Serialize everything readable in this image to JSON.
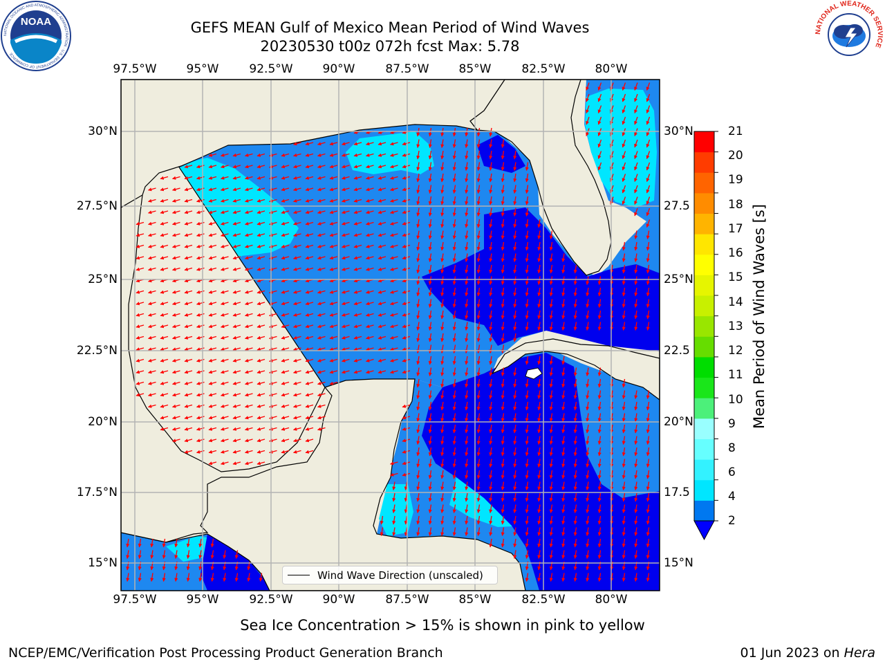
{
  "title": {
    "line1": "GEFS MEAN Gulf of Mexico Mean Period of Wind Waves",
    "line2": "20230530 t00z 072h fcst   Max: 5.78"
  },
  "logos": {
    "noaa_text": "NOAA",
    "noaa_ring": "NATIONAL OCEANIC AND ATMOSPHERIC ADMINISTRATION · U.S. DEPARTMENT OF COMMERCE",
    "nws_ring": "NATIONAL WEATHER SERVICE"
  },
  "map": {
    "lon_labels": [
      "97.5°W",
      "95°W",
      "92.5°W",
      "90°W",
      "87.5°W",
      "85°W",
      "82.5°W",
      "80°W"
    ],
    "lat_labels_left": [
      "30°N",
      "27.5°N",
      "25°N",
      "22.5°N",
      "20°N",
      "17.5°N",
      "15°N"
    ],
    "lat_labels_right": [
      "30°N",
      "27.5",
      "25°N",
      "22.5",
      "20°N",
      "17.5",
      "15°N"
    ],
    "legend_text": "Wind Wave Direction (unscaled)",
    "colors": {
      "land": "#efedde",
      "ocean_fill": "#1e88f0",
      "arrow": "#ff0000",
      "grid": "#b3b3b3"
    }
  },
  "colorbar": {
    "label": "Mean Period of Wind Waves [s]",
    "ticks": [
      "21",
      "20",
      "19",
      "18",
      "17",
      "16",
      "15",
      "14",
      "13",
      "12",
      "11",
      "10",
      "9",
      "8",
      "6",
      "4",
      "2"
    ],
    "colors_bottom_to_top": [
      "#0078f0",
      "#00e6ff",
      "#33f2ff",
      "#66ffff",
      "#99ffff",
      "#4cf07a",
      "#1ae61a",
      "#00dd00",
      "#66dd00",
      "#99e600",
      "#c8f000",
      "#e6f500",
      "#ffff00",
      "#ffe600",
      "#ffb400",
      "#ff8c00",
      "#ff6400",
      "#ff3c00",
      "#ff0000"
    ],
    "extend_color": "#0000ff"
  },
  "subtitle": "Sea Ice Concentration > 15% is shown in pink to yellow",
  "footer": {
    "left": "NCEP/EMC/Verification Post Processing Product Generation Branch",
    "right_date": "01 Jun 2023 on ",
    "right_host": "Hera"
  }
}
